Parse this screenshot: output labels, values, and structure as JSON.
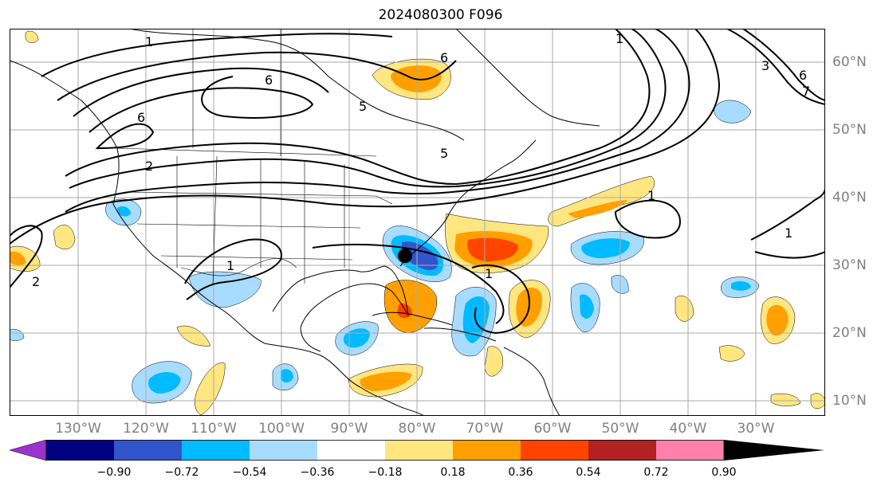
{
  "title": "2024080300 F096",
  "longitude_labels": [
    "130°W",
    "120°W",
    "110°W",
    "100°W",
    "90°W",
    "80°W",
    "70°W",
    "60°W",
    "50°W",
    "40°W",
    "30°W"
  ],
  "latitude_labels": [
    "60°N",
    "50°N",
    "40°N",
    "30°N",
    "20°N",
    "10°N"
  ],
  "colorbar": {
    "ticks": [
      "−0.90",
      "−0.72",
      "−0.54",
      "−0.36",
      "−0.18",
      "0.18",
      "0.36",
      "0.54",
      "0.72",
      "0.90"
    ],
    "colors": [
      "#9933cc",
      "#000080",
      "#3355cc",
      "#00bbff",
      "#a8dcff",
      "#ffffff",
      "#ffe680",
      "#ffa000",
      "#ff4400",
      "#b22222",
      "#ff80aa"
    ]
  },
  "contour_labels": [
    "1",
    "6",
    "6",
    "6",
    "5",
    "2",
    "2",
    "1",
    "1",
    "3",
    "6",
    "7",
    "1",
    "1",
    "1",
    "5"
  ],
  "marker": {
    "name": "storm-center",
    "lon": -80.5,
    "lat": 31.5
  }
}
